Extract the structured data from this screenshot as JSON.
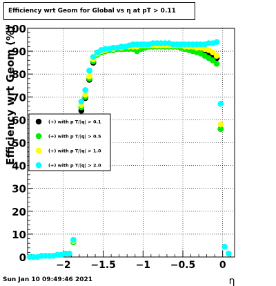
{
  "chart_data": {
    "type": "scatter",
    "title": "Efficiency wrt Geom for Global vs   η at pT > 0.11",
    "xlabel": "η",
    "ylabel": "Efficiency wrt Geom (%)",
    "xlim": [
      -2.45,
      0.15
    ],
    "ylim": [
      0,
      100
    ],
    "xticks": [
      -2,
      -1.5,
      -1,
      -0.5,
      0
    ],
    "xticklabels": [
      "−2",
      "−1.5",
      "−1",
      "−0.5",
      "0"
    ],
    "yticks": [
      0,
      10,
      20,
      30,
      40,
      50,
      60,
      70,
      80,
      90,
      100
    ],
    "yticklabels": [
      "0",
      "10",
      "20",
      "30",
      "40",
      "50",
      "60",
      "70",
      "80",
      "90",
      "100"
    ],
    "grid": true,
    "legend_position": "left-middle",
    "series": [
      {
        "name": "(+) with p T/|q| > 0.1",
        "color": "#000000",
        "x": [
          -1.875,
          -1.775,
          -1.725,
          -1.675,
          -1.625,
          -1.575,
          -1.525,
          -1.475,
          -1.425,
          -1.375,
          -1.325,
          -1.275,
          -1.225,
          -1.175,
          -1.125,
          -1.075,
          -1.025,
          -0.975,
          -0.925,
          -0.875,
          -0.825,
          -0.775,
          -0.725,
          -0.675,
          -0.625,
          -0.575,
          -0.525,
          -0.475,
          -0.425,
          -0.375,
          -0.325,
          -0.275,
          -0.225,
          -0.175,
          -0.125,
          -0.075,
          -0.025
        ],
        "y": [
          6.5,
          64,
          69.5,
          77.5,
          85,
          88.5,
          89.5,
          90,
          90.5,
          90.5,
          91,
          91,
          91.5,
          91.5,
          91.5,
          91.5,
          92,
          92,
          92,
          92,
          92.5,
          92.5,
          92,
          92,
          92,
          92,
          91.5,
          91.5,
          91,
          91,
          90.5,
          90,
          89.5,
          89,
          88,
          87,
          56
        ]
      },
      {
        "name": "(+) with p T/|q| > 0.5",
        "color": "#00ee00",
        "x": [
          -1.875,
          -1.775,
          -1.725,
          -1.675,
          -1.625,
          -1.575,
          -1.525,
          -1.475,
          -1.425,
          -1.375,
          -1.325,
          -1.275,
          -1.225,
          -1.175,
          -1.125,
          -1.075,
          -1.025,
          -0.975,
          -0.925,
          -0.875,
          -0.825,
          -0.775,
          -0.725,
          -0.675,
          -0.625,
          -0.575,
          -0.525,
          -0.475,
          -0.425,
          -0.375,
          -0.325,
          -0.275,
          -0.225,
          -0.175,
          -0.125,
          -0.075,
          -0.025
        ],
        "y": [
          6.5,
          65.5,
          70,
          78,
          85.5,
          88.5,
          89.5,
          90,
          90.5,
          90.5,
          91,
          91,
          91,
          91,
          91,
          90,
          91,
          91.5,
          92,
          92,
          92,
          92,
          92,
          92,
          92,
          92,
          91.5,
          91,
          90.5,
          90,
          89.5,
          89,
          88,
          87,
          86,
          84.5,
          56
        ]
      },
      {
        "name": "(+) with p T/|q| > 1.0",
        "color": "#ffff00",
        "x": [
          -1.875,
          -1.775,
          -1.725,
          -1.675,
          -1.625,
          -1.575,
          -1.525,
          -1.475,
          -1.425,
          -1.375,
          -1.325,
          -1.275,
          -1.225,
          -1.175,
          -1.125,
          -1.075,
          -1.025,
          -0.975,
          -0.925,
          -0.875,
          -0.825,
          -0.775,
          -0.725,
          -0.675,
          -0.625,
          -0.575,
          -0.525,
          -0.475,
          -0.425,
          -0.375,
          -0.325,
          -0.275,
          -0.225,
          -0.175,
          -0.125,
          -0.075,
          -0.025
        ],
        "y": [
          7,
          66.5,
          71,
          79,
          86.5,
          89,
          90,
          90.5,
          91,
          91,
          91.5,
          91.5,
          92,
          92,
          92,
          92,
          92.5,
          92.5,
          92.5,
          92.5,
          92.5,
          92.5,
          92.5,
          92.5,
          92.5,
          92.5,
          92.5,
          92,
          92,
          92,
          91.5,
          91.5,
          91,
          90.5,
          89.5,
          88,
          58
        ]
      },
      {
        "name": "(+) with p T/|q| > 2.0",
        "color": "#00ffff",
        "x": [
          -2.425,
          -2.375,
          -2.325,
          -2.275,
          -2.225,
          -2.175,
          -2.125,
          -2.075,
          -2.025,
          -1.975,
          -1.925,
          -1.875,
          -1.775,
          -1.725,
          -1.675,
          -1.625,
          -1.575,
          -1.525,
          -1.475,
          -1.425,
          -1.375,
          -1.325,
          -1.275,
          -1.225,
          -1.175,
          -1.125,
          -1.075,
          -1.025,
          -0.975,
          -0.925,
          -0.875,
          -0.825,
          -0.775,
          -0.725,
          -0.675,
          -0.625,
          -0.575,
          -0.525,
          -0.475,
          -0.425,
          -0.375,
          -0.325,
          -0.275,
          -0.225,
          -0.175,
          -0.125,
          -0.075,
          -0.025,
          0.025,
          0.075
        ],
        "y": [
          0,
          0,
          0,
          0.5,
          0.5,
          0.5,
          0.5,
          1,
          1,
          1.5,
          1.5,
          7.5,
          68,
          73,
          81.5,
          87.5,
          89.5,
          90.5,
          91,
          91,
          91.5,
          91.5,
          92,
          92,
          92.5,
          93,
          93,
          93,
          93,
          93,
          93.5,
          93.5,
          93.5,
          93.5,
          93.5,
          93,
          93,
          93,
          93,
          93,
          93,
          93,
          93,
          93,
          93.5,
          93.5,
          94,
          67,
          4.5,
          1.5
        ]
      }
    ]
  },
  "footer": {
    "timestamp": "Sun Jan 10 09:49:46 2021"
  }
}
